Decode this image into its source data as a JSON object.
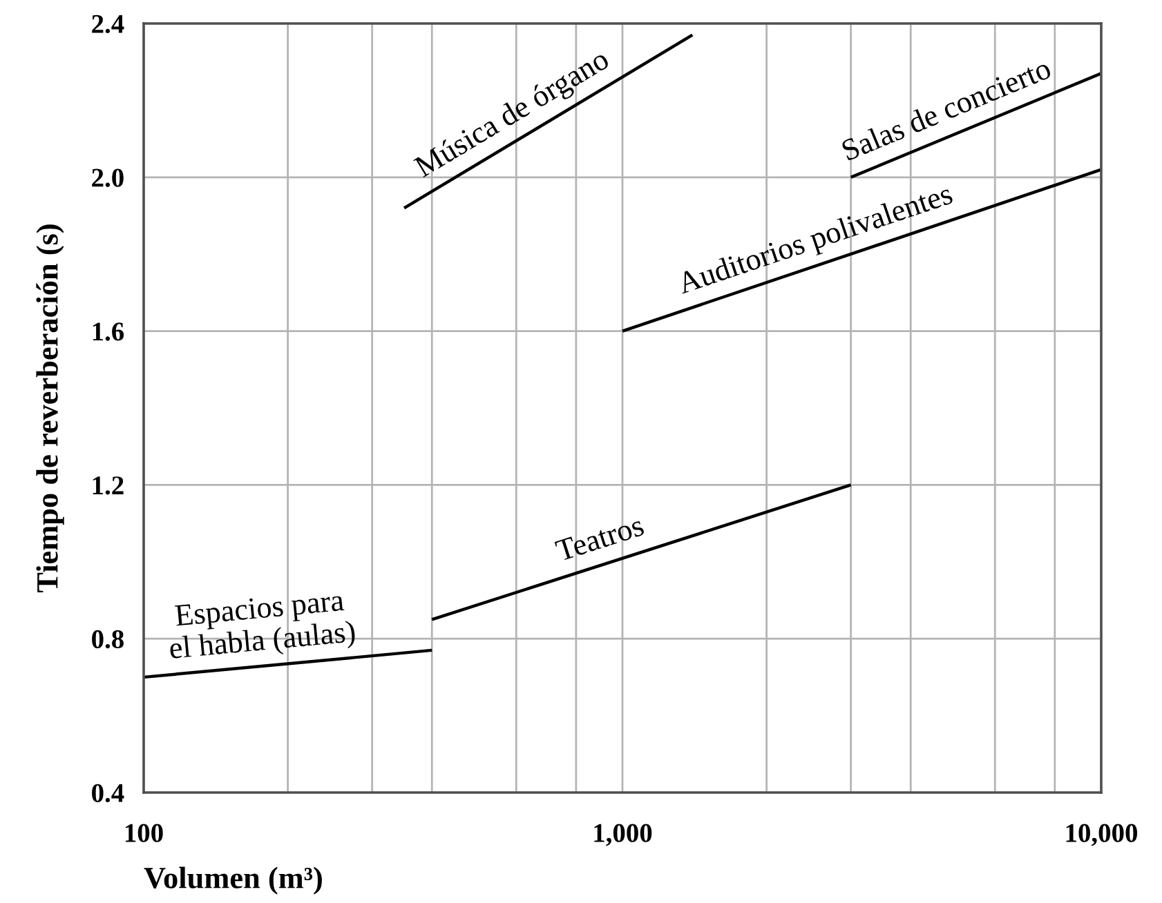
{
  "chart_data": {
    "type": "line",
    "xlabel": "Volumen (m³)",
    "ylabel": "Tiempo de reverberación (s)",
    "log": "x",
    "xlim": [
      100,
      10000
    ],
    "ylim": [
      0.4,
      2.4
    ],
    "xticks": [
      100,
      {
        "value": 200,
        "label": null
      },
      {
        "value": 300,
        "label": null
      },
      {
        "value": 400,
        "label": null
      },
      {
        "value": 600,
        "label": null
      },
      {
        "value": 800,
        "label": null
      },
      {
        "value": 1000,
        "label": "1,000"
      },
      {
        "value": 2000,
        "label": null
      },
      {
        "value": 3000,
        "label": null
      },
      {
        "value": 4000,
        "label": null
      },
      {
        "value": 6000,
        "label": null
      },
      {
        "value": 8000,
        "label": null
      },
      {
        "value": 10000,
        "label": "10,000"
      }
    ],
    "yticks": [
      0.4,
      0.8,
      1.2,
      1.6,
      {
        "value": 2.0,
        "label": "2.0"
      },
      2.4
    ],
    "grid": true,
    "series": [
      {
        "name": "Espacios para\nel habla (aulas)",
        "color": "#000000",
        "x": [
          100,
          400
        ],
        "values": [
          0.7,
          0.77
        ]
      },
      {
        "name": "Teatros",
        "color": "#000000",
        "x": [
          400,
          3000
        ],
        "values": [
          0.85,
          1.2
        ]
      },
      {
        "name": "Música de órgano",
        "color": "#000000",
        "x": [
          350,
          1400
        ],
        "values": [
          1.92,
          2.37
        ]
      },
      {
        "name": "Auditorios polivalentes",
        "color": "#000000",
        "x": [
          1000,
          10000
        ],
        "values": [
          1.6,
          2.02
        ]
      },
      {
        "name": "Salas de concierto",
        "color": "#000000",
        "x": [
          3000,
          10000
        ],
        "values": [
          2.0,
          2.27
        ]
      }
    ]
  }
}
